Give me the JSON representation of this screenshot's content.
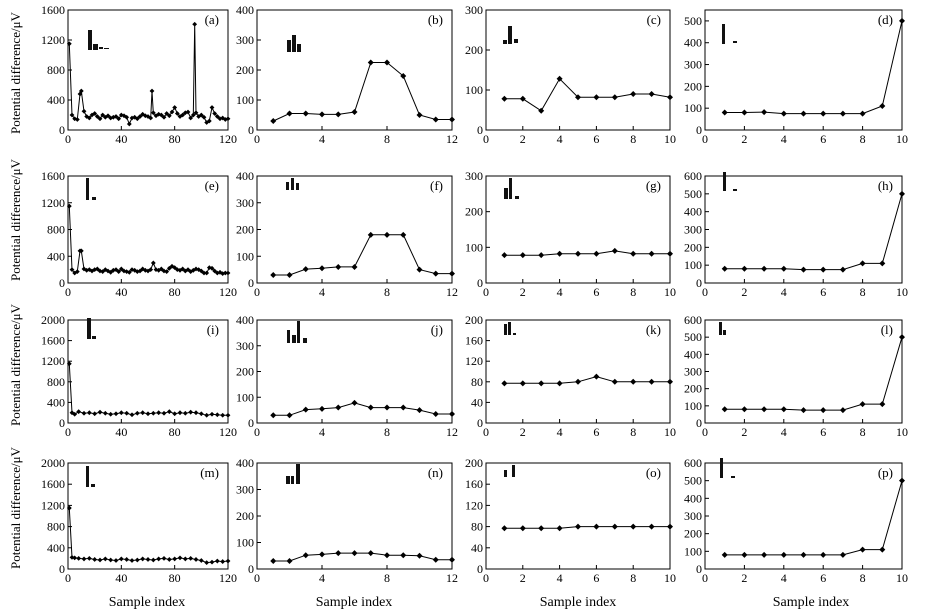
{
  "figure": {
    "ylabel": "Potential difference/μV",
    "xlabel": "Sample index"
  },
  "chart_data": [
    {
      "id": "a",
      "type": "line",
      "label": "(a)",
      "xlim": [
        0,
        120
      ],
      "ylim": [
        0,
        1600
      ],
      "xticks": [
        0,
        40,
        80,
        120
      ],
      "yticks": [
        0,
        400,
        800,
        1200,
        1600
      ],
      "x": [
        1,
        3,
        5,
        7,
        9,
        10,
        12,
        14,
        16,
        18,
        20,
        22,
        24,
        26,
        28,
        30,
        32,
        34,
        36,
        38,
        40,
        42,
        44,
        46,
        48,
        50,
        52,
        54,
        56,
        58,
        60,
        62,
        63,
        64,
        66,
        68,
        70,
        72,
        74,
        76,
        78,
        80,
        82,
        84,
        86,
        88,
        90,
        92,
        94,
        95,
        96,
        98,
        100,
        102,
        104,
        106,
        108,
        110,
        112,
        114,
        116,
        118,
        120
      ],
      "values": [
        1150,
        200,
        150,
        140,
        480,
        520,
        250,
        180,
        160,
        200,
        220,
        180,
        150,
        200,
        170,
        190,
        160,
        170,
        180,
        150,
        200,
        190,
        170,
        80,
        160,
        170,
        150,
        180,
        210,
        190,
        180,
        160,
        520,
        230,
        190,
        210,
        200,
        170,
        220,
        190,
        240,
        300,
        220,
        180,
        200,
        230,
        240,
        160,
        200,
        1410,
        230,
        180,
        200,
        170,
        100,
        120,
        300,
        220,
        180,
        150,
        160,
        140,
        150
      ]
    },
    {
      "id": "b",
      "type": "line",
      "label": "(b)",
      "xlim": [
        0,
        12
      ],
      "ylim": [
        0,
        400
      ],
      "xticks": [
        0,
        4,
        8,
        12
      ],
      "yticks": [
        0,
        100,
        200,
        300,
        400
      ],
      "x": [
        1,
        2,
        3,
        4,
        5,
        6,
        7,
        8,
        9,
        10,
        11,
        12
      ],
      "values": [
        30,
        55,
        55,
        52,
        52,
        60,
        225,
        225,
        180,
        50,
        35,
        35
      ]
    },
    {
      "id": "c",
      "type": "line",
      "label": "(c)",
      "xlim": [
        0,
        10
      ],
      "ylim": [
        0,
        300
      ],
      "xticks": [
        0,
        2,
        4,
        6,
        8,
        10
      ],
      "yticks": [
        0,
        100,
        200,
        300
      ],
      "x": [
        1,
        2,
        3,
        4,
        5,
        6,
        7,
        8,
        9,
        10
      ],
      "values": [
        78,
        78,
        48,
        128,
        82,
        82,
        82,
        90,
        90,
        82
      ]
    },
    {
      "id": "d",
      "type": "line",
      "label": "(d)",
      "xlim": [
        0,
        10
      ],
      "ylim": [
        0,
        550
      ],
      "xticks": [
        0,
        2,
        4,
        6,
        8,
        10
      ],
      "yticks": [
        0,
        100,
        200,
        300,
        400,
        500
      ],
      "x": [
        1,
        2,
        3,
        4,
        5,
        6,
        7,
        8,
        9,
        10
      ],
      "values": [
        80,
        80,
        82,
        75,
        75,
        75,
        75,
        75,
        110,
        500
      ]
    },
    {
      "id": "e",
      "type": "line",
      "label": "(e)",
      "xlim": [
        0,
        120
      ],
      "ylim": [
        0,
        1600
      ],
      "xticks": [
        0,
        40,
        80,
        120
      ],
      "yticks": [
        0,
        400,
        800,
        1200,
        1600
      ],
      "x": [
        1,
        3,
        5,
        7,
        9,
        10,
        12,
        14,
        16,
        18,
        20,
        22,
        24,
        26,
        28,
        30,
        32,
        34,
        36,
        38,
        40,
        42,
        44,
        46,
        48,
        50,
        52,
        54,
        56,
        58,
        60,
        62,
        64,
        66,
        68,
        70,
        72,
        74,
        76,
        78,
        80,
        82,
        84,
        86,
        88,
        90,
        92,
        94,
        96,
        98,
        100,
        102,
        104,
        106,
        108,
        110,
        112,
        114,
        116,
        118,
        120
      ],
      "values": [
        1150,
        200,
        150,
        170,
        480,
        480,
        210,
        190,
        200,
        180,
        200,
        210,
        180,
        170,
        200,
        180,
        160,
        190,
        200,
        170,
        210,
        180,
        170,
        160,
        200,
        190,
        170,
        180,
        210,
        190,
        180,
        200,
        300,
        200,
        190,
        210,
        180,
        170,
        220,
        250,
        230,
        200,
        190,
        210,
        180,
        200,
        170,
        190,
        210,
        200,
        180,
        150,
        150,
        230,
        220,
        180,
        150,
        160,
        140,
        150,
        150
      ]
    },
    {
      "id": "f",
      "type": "line",
      "label": "(f)",
      "xlim": [
        0,
        12
      ],
      "ylim": [
        0,
        400
      ],
      "xticks": [
        0,
        4,
        8,
        12
      ],
      "yticks": [
        0,
        100,
        200,
        300,
        400
      ],
      "x": [
        1,
        2,
        3,
        4,
        5,
        6,
        7,
        8,
        9,
        10,
        11,
        12
      ],
      "values": [
        30,
        30,
        52,
        55,
        60,
        60,
        180,
        180,
        180,
        50,
        35,
        35
      ]
    },
    {
      "id": "g",
      "type": "line",
      "label": "(g)",
      "xlim": [
        0,
        10
      ],
      "ylim": [
        0,
        300
      ],
      "xticks": [
        0,
        2,
        4,
        6,
        8,
        10
      ],
      "yticks": [
        0,
        100,
        200,
        300
      ],
      "x": [
        1,
        2,
        3,
        4,
        5,
        6,
        7,
        8,
        9,
        10
      ],
      "values": [
        78,
        78,
        78,
        82,
        82,
        82,
        90,
        82,
        82,
        82
      ]
    },
    {
      "id": "h",
      "type": "line",
      "label": "(h)",
      "xlim": [
        0,
        10
      ],
      "ylim": [
        0,
        600
      ],
      "xticks": [
        0,
        2,
        4,
        6,
        8,
        10
      ],
      "yticks": [
        0,
        100,
        200,
        300,
        400,
        500,
        600
      ],
      "x": [
        1,
        2,
        3,
        4,
        5,
        6,
        7,
        8,
        9,
        10
      ],
      "values": [
        80,
        80,
        80,
        80,
        75,
        75,
        75,
        110,
        110,
        500
      ]
    },
    {
      "id": "i",
      "type": "line",
      "label": "(i)",
      "xlim": [
        0,
        120
      ],
      "ylim": [
        0,
        2000
      ],
      "xticks": [
        0,
        40,
        80,
        120
      ],
      "yticks": [
        0,
        400,
        800,
        1200,
        1600,
        2000
      ],
      "x": [
        1,
        3,
        5,
        8,
        12,
        16,
        20,
        24,
        28,
        32,
        36,
        40,
        44,
        48,
        52,
        56,
        60,
        64,
        68,
        72,
        76,
        80,
        84,
        88,
        92,
        96,
        100,
        104,
        108,
        112,
        116,
        120
      ],
      "values": [
        1150,
        200,
        170,
        220,
        190,
        200,
        180,
        210,
        190,
        170,
        180,
        200,
        190,
        160,
        190,
        200,
        180,
        190,
        200,
        190,
        220,
        180,
        200,
        190,
        210,
        200,
        180,
        150,
        170,
        160,
        150,
        150
      ]
    },
    {
      "id": "j",
      "type": "line",
      "label": "(j)",
      "xlim": [
        0,
        12
      ],
      "ylim": [
        0,
        400
      ],
      "xticks": [
        0,
        4,
        8,
        12
      ],
      "yticks": [
        0,
        100,
        200,
        300,
        400
      ],
      "x": [
        1,
        2,
        3,
        4,
        5,
        6,
        7,
        8,
        9,
        10,
        11,
        12
      ],
      "values": [
        30,
        30,
        52,
        55,
        60,
        78,
        60,
        60,
        60,
        50,
        35,
        35
      ]
    },
    {
      "id": "k",
      "type": "line",
      "label": "(k)",
      "xlim": [
        0,
        10
      ],
      "ylim": [
        0,
        200
      ],
      "xticks": [
        0,
        2,
        4,
        6,
        8,
        10
      ],
      "yticks": [
        0,
        40,
        80,
        120,
        160,
        200
      ],
      "x": [
        1,
        2,
        3,
        4,
        5,
        6,
        7,
        8,
        9,
        10
      ],
      "values": [
        77,
        77,
        77,
        77,
        80,
        90,
        80,
        80,
        80,
        80
      ]
    },
    {
      "id": "l",
      "type": "line",
      "label": "(l)",
      "xlim": [
        0,
        10
      ],
      "ylim": [
        0,
        600
      ],
      "xticks": [
        0,
        2,
        4,
        6,
        8,
        10
      ],
      "yticks": [
        0,
        100,
        200,
        300,
        400,
        500,
        600
      ],
      "x": [
        1,
        2,
        3,
        4,
        5,
        6,
        7,
        8,
        9,
        10
      ],
      "values": [
        80,
        80,
        80,
        80,
        75,
        75,
        75,
        110,
        110,
        500
      ]
    },
    {
      "id": "m",
      "type": "line",
      "label": "(m)",
      "xlim": [
        0,
        120
      ],
      "ylim": [
        0,
        2000
      ],
      "xticks": [
        0,
        40,
        80,
        120
      ],
      "yticks": [
        0,
        400,
        800,
        1200,
        1600,
        2000
      ],
      "x": [
        1,
        3,
        5,
        8,
        12,
        16,
        20,
        24,
        28,
        32,
        36,
        40,
        44,
        48,
        52,
        56,
        60,
        64,
        68,
        72,
        76,
        80,
        84,
        88,
        92,
        96,
        100,
        104,
        108,
        112,
        116,
        120
      ],
      "values": [
        1150,
        220,
        210,
        200,
        190,
        200,
        180,
        170,
        190,
        170,
        160,
        190,
        180,
        160,
        170,
        190,
        180,
        170,
        190,
        200,
        180,
        190,
        210,
        190,
        200,
        180,
        160,
        120,
        130,
        150,
        140,
        150
      ]
    },
    {
      "id": "n",
      "type": "line",
      "label": "(n)",
      "xlim": [
        0,
        12
      ],
      "ylim": [
        0,
        400
      ],
      "xticks": [
        0,
        4,
        8,
        12
      ],
      "yticks": [
        0,
        100,
        200,
        300,
        400
      ],
      "x": [
        1,
        2,
        3,
        4,
        5,
        6,
        7,
        8,
        9,
        10,
        11,
        12
      ],
      "values": [
        30,
        30,
        52,
        55,
        60,
        60,
        60,
        52,
        52,
        50,
        35,
        35
      ]
    },
    {
      "id": "o",
      "type": "line",
      "label": "(o)",
      "xlim": [
        0,
        10
      ],
      "ylim": [
        0,
        200
      ],
      "xticks": [
        0,
        2,
        4,
        6,
        8,
        10
      ],
      "yticks": [
        0,
        40,
        80,
        120,
        160,
        200
      ],
      "x": [
        1,
        2,
        3,
        4,
        5,
        6,
        7,
        8,
        9,
        10
      ],
      "values": [
        77,
        77,
        77,
        77,
        80,
        80,
        80,
        80,
        80,
        80
      ]
    },
    {
      "id": "p",
      "type": "line",
      "label": "(p)",
      "xlim": [
        0,
        10
      ],
      "ylim": [
        0,
        600
      ],
      "xticks": [
        0,
        2,
        4,
        6,
        8,
        10
      ],
      "yticks": [
        0,
        100,
        200,
        300,
        400,
        500,
        600
      ],
      "x": [
        1,
        2,
        3,
        4,
        5,
        6,
        7,
        8,
        9,
        10
      ],
      "values": [
        80,
        80,
        80,
        80,
        80,
        80,
        80,
        110,
        110,
        500
      ]
    }
  ]
}
